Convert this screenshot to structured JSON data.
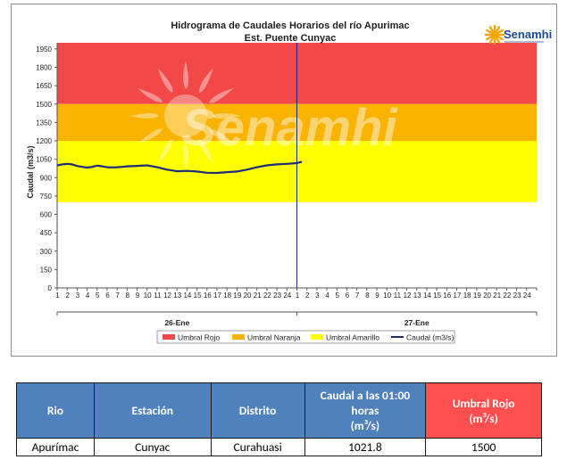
{
  "chart_data": {
    "type": "line",
    "title": "Hidrograma de Caudales Horarios del río Apurimac",
    "subtitle": "Est. Puente Cunyac",
    "ylabel": "Caudal  (m3/s)",
    "xlabel": "",
    "ylim": [
      0,
      2000
    ],
    "yticks": [
      0,
      150,
      300,
      450,
      600,
      750,
      900,
      1050,
      1200,
      1350,
      1500,
      1650,
      1800,
      1950
    ],
    "x_hours": [
      "1",
      "2",
      "3",
      "4",
      "5",
      "6",
      "7",
      "8",
      "9",
      "10",
      "11",
      "12",
      "13",
      "14",
      "15",
      "16",
      "17",
      "18",
      "19",
      "20",
      "21",
      "22",
      "23",
      "24",
      "1",
      "2",
      "3",
      "4",
      "5",
      "6",
      "7",
      "8",
      "9",
      "10",
      "11",
      "12",
      "13",
      "14",
      "15",
      "16",
      "17",
      "18",
      "19",
      "20",
      "21",
      "22",
      "23",
      "24"
    ],
    "days": [
      "26-Ene",
      "27-Ene"
    ],
    "thresholds": [
      {
        "name": "Umbral Rojo",
        "from": 1500,
        "to": 2000,
        "color": "#f24848"
      },
      {
        "name": "Umbral Naranja",
        "from": 1200,
        "to": 1500,
        "color": "#f9b300"
      },
      {
        "name": "Umbral Amarillo",
        "from": 700,
        "to": 1200,
        "color": "#ffff00"
      }
    ],
    "series": [
      {
        "name": "Caudal (m3/s)",
        "color": "#1c2c78",
        "x": [
          0,
          0.5,
          1,
          1.5,
          2,
          2.5,
          3,
          3.5,
          4,
          4.5,
          5,
          5.5,
          6,
          6.5,
          7,
          8,
          9,
          10,
          11,
          12,
          13,
          14,
          15,
          16,
          17,
          18,
          19,
          20,
          21,
          22,
          23,
          24,
          24.5
        ],
        "y": [
          1000,
          1008,
          1012,
          1008,
          995,
          988,
          982,
          988,
          998,
          992,
          985,
          983,
          985,
          988,
          992,
          996,
          1000,
          985,
          965,
          952,
          955,
          950,
          940,
          938,
          945,
          950,
          965,
          985,
          1000,
          1008,
          1012,
          1018,
          1030
        ]
      }
    ],
    "legend": [
      "Umbral Rojo",
      "Umbral Naranja",
      "Umbral Amarillo",
      "Caudal (m3/s)"
    ],
    "legend_position": "bottom",
    "grid": false
  },
  "watermark": "Senamhi",
  "logo": {
    "text": "Senamhi"
  },
  "table": {
    "headers": [
      "Rio",
      "Estación",
      "Distrito",
      "Caudal a las 01:00 horas (m³/s)",
      "Umbral Rojo (m³/s)"
    ],
    "row": [
      "Apurímac",
      "Cunyac",
      "Curahuasi",
      "1021.8",
      "1500"
    ]
  }
}
